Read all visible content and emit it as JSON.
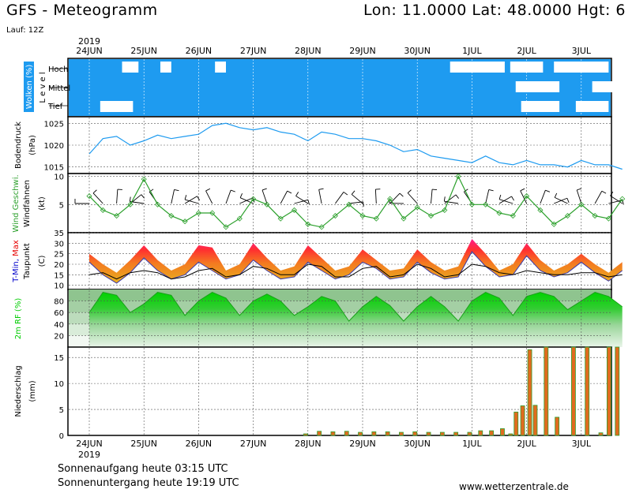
{
  "header": {
    "title": "GFS - Meteogramm",
    "location": "Lon: 11.0000 Lat: 48.0000 Hgt: 6",
    "run": "Lauf: 12Z"
  },
  "footer": {
    "sunrise": "Sonnenaufgang heute 03:15 UTC",
    "sunset": "Sonnenuntergang heute 19:19 UTC",
    "site": "www.wetterzentrale.de"
  },
  "colors": {
    "cloud": "#1e9bf0",
    "pressure": "#1e9bf0",
    "wind_speed": "#2ca02c",
    "tmin_label": "#0000cc",
    "tmax_label": "#e60000",
    "rh": "#00cc00",
    "precip_fill": "#e06b1f",
    "precip_edge": "#2fa02f"
  },
  "chart_data": {
    "x_axis": {
      "year": "2019",
      "days": [
        "24JUN",
        "25JUN",
        "26JUN",
        "27JUN",
        "28JUN",
        "29JUN",
        "30JUN",
        "1JUL",
        "2JUL",
        "3JUL"
      ]
    },
    "panels": [
      {
        "id": "clouds",
        "type": "area",
        "ylabel": "Wolken (%)",
        "ylabel2": "L e v e l",
        "levels": [
          "Hoch",
          "Mittel",
          "Tief"
        ],
        "gaps": [
          {
            "level": "Hoch",
            "from": 0.6,
            "to": 0.9
          },
          {
            "level": "Hoch",
            "from": 1.3,
            "to": 1.5
          },
          {
            "level": "Hoch",
            "from": 2.3,
            "to": 2.5
          },
          {
            "level": "Hoch",
            "from": 6.6,
            "to": 7.6
          },
          {
            "level": "Hoch",
            "from": 7.7,
            "to": 8.3
          },
          {
            "level": "Hoch",
            "from": 8.5,
            "to": 9.5
          },
          {
            "level": "Mittel",
            "from": 7.8,
            "to": 8.6
          },
          {
            "level": "Mittel",
            "from": 9.2,
            "to": 9.6
          },
          {
            "level": "Tief",
            "from": 0.2,
            "to": 0.8
          },
          {
            "level": "Tief",
            "from": 7.9,
            "to": 8.6
          },
          {
            "level": "Tief",
            "from": 8.9,
            "to": 9.5
          }
        ]
      },
      {
        "id": "pressure",
        "type": "line",
        "ylabel": "Bodendruck",
        "ylabel2": "(hPa)",
        "yticks": [
          1015,
          1020,
          1025
        ],
        "ylim": [
          1013.5,
          1026.5
        ],
        "x": [
          0,
          0.25,
          0.5,
          0.75,
          1,
          1.25,
          1.5,
          1.75,
          2,
          2.25,
          2.5,
          2.75,
          3,
          3.25,
          3.5,
          3.75,
          4,
          4.25,
          4.5,
          4.75,
          5,
          5.25,
          5.5,
          5.75,
          6,
          6.25,
          6.5,
          6.75,
          7,
          7.25,
          7.5,
          7.75,
          8,
          8.25,
          8.5,
          8.75,
          9,
          9.25,
          9.5,
          9.75
        ],
        "values": [
          1018,
          1021.5,
          1022,
          1020,
          1021,
          1022.3,
          1021.5,
          1022,
          1022.5,
          1024.5,
          1025,
          1024,
          1023.5,
          1024,
          1023,
          1022.5,
          1021,
          1023,
          1022.5,
          1021.5,
          1021.5,
          1021,
          1020,
          1018.5,
          1019,
          1017.5,
          1017,
          1016.5,
          1016,
          1017.5,
          1016,
          1015.5,
          1016.5,
          1015.5,
          1015.5,
          1015,
          1016.5,
          1015.5,
          1015.5,
          1014.5
        ]
      },
      {
        "id": "wind",
        "type": "line",
        "ylabel": "Wind Geschwi.",
        "ylabel2": "Windfahnen",
        "ylabel3": "(kt)",
        "yticks": [
          5,
          10
        ],
        "ylim": [
          0,
          10.5
        ],
        "x": [
          0,
          0.25,
          0.5,
          0.75,
          1,
          1.25,
          1.5,
          1.75,
          2,
          2.25,
          2.5,
          2.75,
          3,
          3.25,
          3.5,
          3.75,
          4,
          4.25,
          4.5,
          4.75,
          5,
          5.25,
          5.5,
          5.75,
          6,
          6.25,
          6.5,
          6.75,
          7,
          7.25,
          7.5,
          7.75,
          8,
          8.25,
          8.5,
          8.75,
          9,
          9.25,
          9.5,
          9.75
        ],
        "values": [
          6.5,
          4,
          3,
          5,
          9.5,
          5,
          3,
          2,
          3.5,
          3.5,
          1,
          2.5,
          6,
          5,
          2.5,
          4,
          1.5,
          1,
          3,
          5,
          3,
          2.5,
          6,
          2.5,
          4.5,
          3,
          4,
          10,
          5,
          5,
          3.5,
          3,
          6.5,
          4,
          1.5,
          3,
          5,
          3,
          2.5,
          6
        ]
      },
      {
        "id": "temperature",
        "type": "area",
        "ylabel": "T-Min,",
        "ylabel_max": "Max",
        "ylabel2": "Taupunkt",
        "ylabel3": "(C)",
        "yticks": [
          10,
          15,
          20,
          25,
          30,
          35
        ],
        "ylim": [
          8,
          35
        ],
        "series": [
          {
            "name": "Min",
            "values": [
              24,
              18,
              14,
              19,
              26,
              20,
              16,
              18,
              24,
              20,
              16,
              18,
              25,
              20,
              16,
              17,
              24,
              20,
              16,
              18,
              24,
              21,
              16,
              17,
              24,
              19,
              16,
              17,
              29,
              22,
              17,
              18,
              27,
              20,
              17,
              19,
              24,
              19,
              15,
              20
            ]
          },
          {
            "name": "Max",
            "values": [
              25,
              20,
              16,
              22,
              29,
              22,
              17,
              20,
              29,
              28,
              17,
              20,
              30,
              23,
              17,
              19,
              29,
              23,
              17,
              19,
              27,
              22,
              17,
              18,
              27,
              21,
              17,
              19,
              32,
              25,
              17,
              20,
              30,
              22,
              17,
              20,
              25,
              20,
              16,
              21
            ]
          },
          {
            "name": "Taupunkt",
            "values": [
              15,
              16,
              13,
              16,
              17,
              16,
              13,
              14,
              17,
              18,
              14,
              15,
              19,
              18,
              15,
              15,
              20,
              19,
              14,
              14,
              18,
              19,
              14,
              15,
              20,
              18,
              14,
              15,
              20,
              19,
              16,
              15,
              17,
              16,
              15,
              15,
              16,
              16,
              14,
              15
            ]
          }
        ],
        "x": [
          0,
          0.25,
          0.5,
          0.75,
          1,
          1.25,
          1.5,
          1.75,
          2,
          2.25,
          2.5,
          2.75,
          3,
          3.25,
          3.5,
          3.75,
          4,
          4.25,
          4.5,
          4.75,
          5,
          5.25,
          5.5,
          5.75,
          6,
          6.25,
          6.5,
          6.75,
          7,
          7.25,
          7.5,
          7.75,
          8,
          8.25,
          8.5,
          8.75,
          9,
          9.25,
          9.5,
          9.75
        ]
      },
      {
        "id": "rh",
        "type": "area",
        "ylabel": "2m RF (%)",
        "yticks": [
          20,
          40,
          60,
          80
        ],
        "ylim": [
          0,
          100
        ],
        "x": [
          0,
          0.25,
          0.5,
          0.75,
          1,
          1.25,
          1.5,
          1.75,
          2,
          2.25,
          2.5,
          2.75,
          3,
          3.25,
          3.5,
          3.75,
          4,
          4.25,
          4.5,
          4.75,
          5,
          5.25,
          5.5,
          5.75,
          6,
          6.25,
          6.5,
          6.75,
          7,
          7.25,
          7.5,
          7.75,
          8,
          8.25,
          8.5,
          8.75,
          9,
          9.25,
          9.5,
          9.75
        ],
        "values": [
          60,
          95,
          90,
          60,
          75,
          95,
          90,
          55,
          80,
          95,
          85,
          55,
          80,
          92,
          80,
          55,
          70,
          88,
          80,
          45,
          70,
          88,
          72,
          45,
          70,
          88,
          70,
          45,
          80,
          95,
          85,
          55,
          88,
          95,
          88,
          65,
          80,
          95,
          88,
          70
        ]
      },
      {
        "id": "precip",
        "type": "bar",
        "ylabel": "Niederschlag",
        "ylabel2": "(mm)",
        "yticks": [
          0,
          5,
          10,
          15
        ],
        "ylim": [
          0,
          17
        ],
        "x": [
          3.95,
          4.2,
          4.45,
          4.7,
          4.95,
          5.2,
          5.45,
          5.7,
          5.95,
          6.2,
          6.45,
          6.7,
          6.95,
          7.15,
          7.35,
          7.55,
          7.7,
          7.8,
          7.92,
          8.05,
          8.15,
          8.35,
          8.55,
          8.85,
          9.1,
          9.35,
          9.5,
          9.65
        ],
        "values": [
          0.3,
          0.8,
          0.7,
          0.8,
          0.6,
          0.7,
          0.7,
          0.6,
          0.7,
          0.6,
          0.6,
          0.6,
          0.6,
          0.9,
          0.9,
          1.3,
          0.3,
          4.5,
          5.7,
          16.5,
          5.8,
          17,
          3.5,
          17,
          17,
          0.5,
          17,
          17
        ]
      }
    ]
  }
}
